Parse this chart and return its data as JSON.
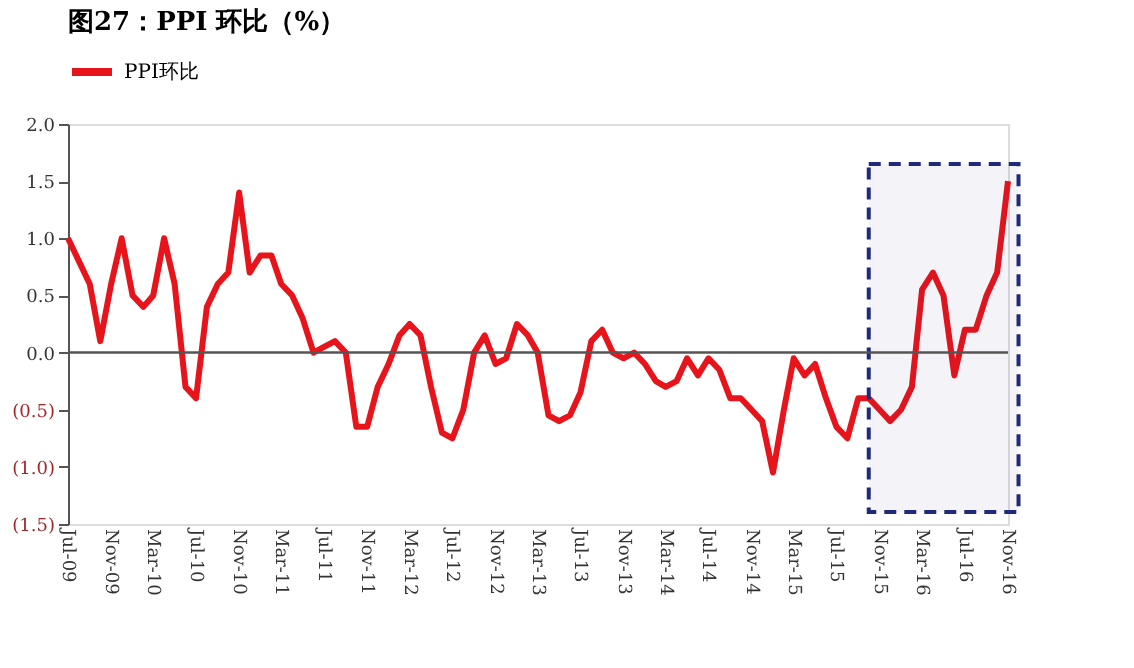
{
  "chart_data": {
    "type": "line",
    "title": "图27：PPI 环比（%）",
    "x": [
      "2009-07",
      "2009-08",
      "2009-09",
      "2009-10",
      "2009-11",
      "2009-12",
      "2010-01",
      "2010-02",
      "2010-03",
      "2010-04",
      "2010-05",
      "2010-06",
      "2010-07",
      "2010-08",
      "2010-09",
      "2010-10",
      "2010-11",
      "2010-12",
      "2011-01",
      "2011-02",
      "2011-03",
      "2011-04",
      "2011-05",
      "2011-06",
      "2011-07",
      "2011-08",
      "2011-09",
      "2011-10",
      "2011-11",
      "2011-12",
      "2012-01",
      "2012-02",
      "2012-03",
      "2012-04",
      "2012-05",
      "2012-06",
      "2012-07",
      "2012-08",
      "2012-09",
      "2012-10",
      "2012-11",
      "2012-12",
      "2013-01",
      "2013-02",
      "2013-03",
      "2013-04",
      "2013-05",
      "2013-06",
      "2013-07",
      "2013-08",
      "2013-09",
      "2013-10",
      "2013-11",
      "2013-12",
      "2014-01",
      "2014-02",
      "2014-03",
      "2014-04",
      "2014-05",
      "2014-06",
      "2014-07",
      "2014-08",
      "2014-09",
      "2014-10",
      "2014-11",
      "2014-12",
      "2015-01",
      "2015-02",
      "2015-03",
      "2015-04",
      "2015-05",
      "2015-06",
      "2015-07",
      "2015-08",
      "2015-09",
      "2015-10",
      "2015-11",
      "2015-12",
      "2016-01",
      "2016-02",
      "2016-03",
      "2016-04",
      "2016-05",
      "2016-06",
      "2016-07",
      "2016-08",
      "2016-09",
      "2016-10",
      "2016-11"
    ],
    "series": [
      {
        "name": "PPI环比",
        "color": "#e8141b",
        "values": [
          1.0,
          0.8,
          0.6,
          0.1,
          0.6,
          1.0,
          0.5,
          0.4,
          0.5,
          1.0,
          0.6,
          -0.3,
          -0.4,
          0.4,
          0.6,
          0.7,
          1.4,
          0.7,
          0.85,
          0.85,
          0.6,
          0.5,
          0.3,
          0.0,
          0.05,
          0.1,
          0.0,
          -0.65,
          -0.65,
          -0.3,
          -0.1,
          0.15,
          0.25,
          0.15,
          -0.3,
          -0.7,
          -0.75,
          -0.5,
          0.0,
          0.15,
          -0.1,
          -0.05,
          0.25,
          0.15,
          0.0,
          -0.55,
          -0.6,
          -0.55,
          -0.35,
          0.1,
          0.2,
          0.0,
          -0.05,
          0.0,
          -0.1,
          -0.25,
          -0.3,
          -0.25,
          -0.05,
          -0.2,
          -0.05,
          -0.15,
          -0.4,
          -0.4,
          -0.5,
          -0.6,
          -1.05,
          -0.5,
          -0.05,
          -0.2,
          -0.1,
          -0.4,
          -0.65,
          -0.75,
          -0.4,
          -0.4,
          -0.5,
          -0.6,
          -0.5,
          -0.3,
          0.55,
          0.7,
          0.5,
          -0.2,
          0.2,
          0.2,
          0.5,
          0.7,
          1.5
        ]
      }
    ],
    "xlim": [
      "2009-07",
      "2016-11"
    ],
    "xticks": [
      {
        "value": "2009-07",
        "label": "Jul-09"
      },
      {
        "value": "2009-11",
        "label": "Nov-09"
      },
      {
        "value": "2010-03",
        "label": "Mar-10"
      },
      {
        "value": "2010-07",
        "label": "Jul-10"
      },
      {
        "value": "2010-11",
        "label": "Nov-10"
      },
      {
        "value": "2011-03",
        "label": "Mar-11"
      },
      {
        "value": "2011-07",
        "label": "Jul-11"
      },
      {
        "value": "2011-11",
        "label": "Nov-11"
      },
      {
        "value": "2012-03",
        "label": "Mar-12"
      },
      {
        "value": "2012-07",
        "label": "Jul-12"
      },
      {
        "value": "2012-11",
        "label": "Nov-12"
      },
      {
        "value": "2013-03",
        "label": "Mar-13"
      },
      {
        "value": "2013-07",
        "label": "Jul-13"
      },
      {
        "value": "2013-11",
        "label": "Nov-13"
      },
      {
        "value": "2014-03",
        "label": "Mar-14"
      },
      {
        "value": "2014-07",
        "label": "Jul-14"
      },
      {
        "value": "2014-11",
        "label": "Nov-14"
      },
      {
        "value": "2015-03",
        "label": "Mar-15"
      },
      {
        "value": "2015-07",
        "label": "Jul-15"
      },
      {
        "value": "2015-11",
        "label": "Nov-15"
      },
      {
        "value": "2016-03",
        "label": "Mar-16"
      },
      {
        "value": "2016-07",
        "label": "Jul-16"
      },
      {
        "value": "2016-11",
        "label": "Nov-16"
      }
    ],
    "ylim": [
      -1.5,
      2.0
    ],
    "yticks": [
      {
        "value": -1.5,
        "label": "(1.5)"
      },
      {
        "value": -1.0,
        "label": "(1.0)"
      },
      {
        "value": -0.5,
        "label": "(0.5)"
      },
      {
        "value": 0,
        "label": "0.0"
      },
      {
        "value": 0.5,
        "label": "0.5"
      },
      {
        "value": 1.0,
        "label": "1.0"
      },
      {
        "value": 1.5,
        "label": "1.5"
      },
      {
        "value": 2.0,
        "label": "2.0"
      }
    ],
    "ref_lines": [
      {
        "axis": "y",
        "value": 0,
        "color": "#555555"
      }
    ],
    "bands": [
      {
        "axis": "x",
        "from": "2015-10",
        "to": "2016-12",
        "color": "#1f2a7a"
      }
    ],
    "grid": false,
    "legend": "top",
    "marker": "none",
    "line_style": "solid"
  }
}
